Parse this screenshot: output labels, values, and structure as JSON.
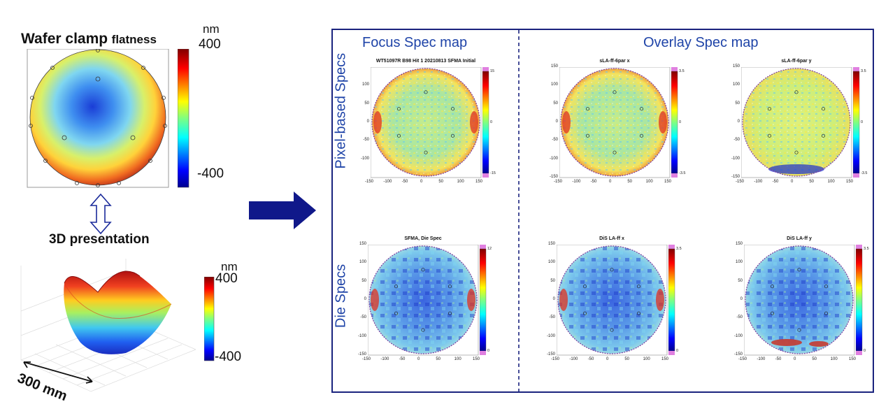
{
  "left": {
    "title_main": "Wafer clamp",
    "title_small": "flatness",
    "unit_top": "nm",
    "cbar_max": "400",
    "cbar_min": "-400",
    "presentation_title": "3D presentation",
    "unit_3d": "nm",
    "cbar3d_max": "400",
    "cbar3d_min": "-400",
    "dimension_label": "300 mm"
  },
  "panel": {
    "focus_title": "Focus Spec map",
    "overlay_title": "Overlay Spec map",
    "row1_title": "Pixel-based Specs",
    "row2_title": "Die Specs",
    "plots": [
      {
        "title": "WT51097R B98 Hit 1 20210813 SFMA Initial",
        "cb_top": "15",
        "cb_mid": "0",
        "cb_bot": "-15"
      },
      {
        "title": "sLA-ff-6par x",
        "cb_top": "3.5",
        "cb_mid": "0",
        "cb_bot": "-3.5"
      },
      {
        "title": "sLA-ff-6par y",
        "cb_top": "3.5",
        "cb_mid": "0",
        "cb_bot": "-3.5"
      },
      {
        "title": "SFMA, Die Spec",
        "cb_top": "12",
        "cb_mid": "",
        "cb_bot": "0"
      },
      {
        "title": "DiS LA-ff x",
        "cb_top": "3.5",
        "cb_mid": "",
        "cb_bot": "0"
      },
      {
        "title": "DiS LA-ff y",
        "cb_top": "3.5",
        "cb_mid": "",
        "cb_bot": "0"
      }
    ],
    "x_ticks": [
      "-150",
      "-100",
      "-50",
      "0",
      "50",
      "100",
      "150"
    ],
    "y_ticks": [
      "150",
      "100",
      "50",
      "0",
      "-50",
      "-100",
      "-150"
    ],
    "y_ticks_first": [
      "100",
      "50",
      "0",
      "-50",
      "-100"
    ]
  },
  "colors": {
    "panel_border": "#1a237e",
    "heading_blue": "#1f44a8",
    "arrow_blue": "#10188a"
  }
}
